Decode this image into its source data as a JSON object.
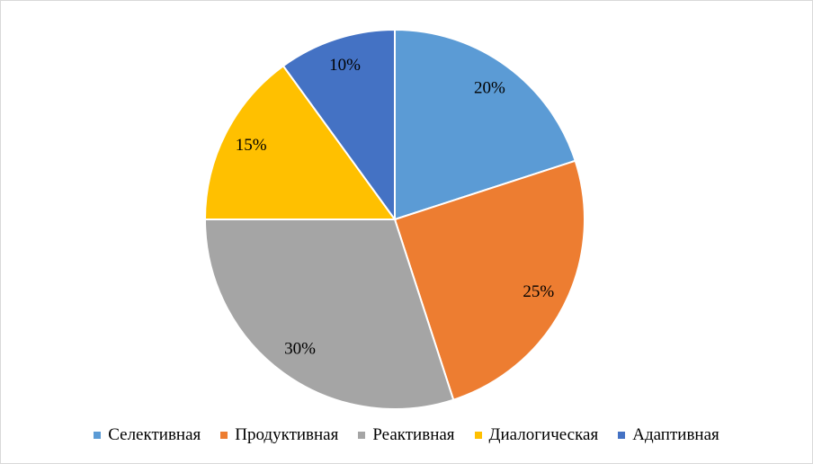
{
  "chart_data": {
    "type": "pie",
    "categories": [
      "Селективная",
      "Продуктивная",
      "Реактивная",
      "Диалогическая",
      "Адаптивная"
    ],
    "values": [
      20,
      25,
      30,
      15,
      10
    ],
    "value_labels": [
      "20%",
      "25%",
      "30%",
      "15%",
      "10%"
    ],
    "colors": [
      "#5b9bd5",
      "#ed7d31",
      "#a5a5a5",
      "#ffc000",
      "#4472c4"
    ],
    "legend": "bottom"
  }
}
